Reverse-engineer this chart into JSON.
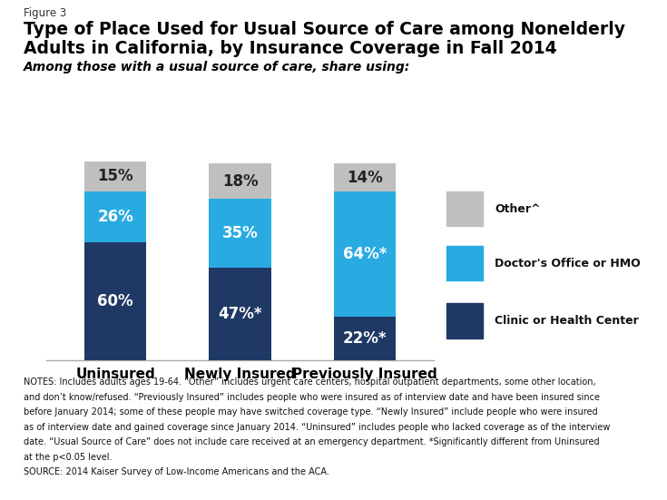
{
  "categories": [
    "Uninsured",
    "Newly Insured",
    "Previously Insured"
  ],
  "clinic_values": [
    60,
    47,
    22
  ],
  "doctor_values": [
    26,
    35,
    64
  ],
  "other_values": [
    15,
    18,
    14
  ],
  "clinic_labels": [
    "60%",
    "47%*",
    "22%*"
  ],
  "doctor_labels": [
    "26%",
    "35%",
    "64%*"
  ],
  "other_labels": [
    "15%",
    "18%",
    "14%"
  ],
  "clinic_color": "#1F3864",
  "doctor_color": "#29ABE2",
  "other_color": "#BFBFBF",
  "figure3_label": "Figure 3",
  "title_line1": "Type of Place Used for Usual Source of Care among Nonelderly",
  "title_line2": "Adults in California, by Insurance Coverage in Fall 2014",
  "subtitle": "Among those with a usual source of care, share using:",
  "legend_labels": [
    "Other^",
    "Doctor's Office or HMO",
    "Clinic or Health Center"
  ],
  "notes_lines": [
    "NOTES: Includes adults ages 19-64. “Other” includes urgent care centers, hospital outpatient departments, some other location,",
    "and don’t know/refused. “Previously Insured” includes people who were insured as of interview date and have been insured since",
    "before January 2014; some of these people may have switched coverage type. “Newly Insured” include people who were insured",
    "as of interview date and gained coverage since January 2014. “Uninsured” includes people who lacked coverage as of the interview",
    "date. “Usual Source of Care” does not include care received at an emergency department. *Significantly different from Uninsured",
    "at the p<0.05 level."
  ],
  "source_line": "SOURCE: 2014 Kaiser Survey of Low-Income Americans and the ACA.",
  "bar_width": 0.5,
  "background_color": "#FFFFFF"
}
